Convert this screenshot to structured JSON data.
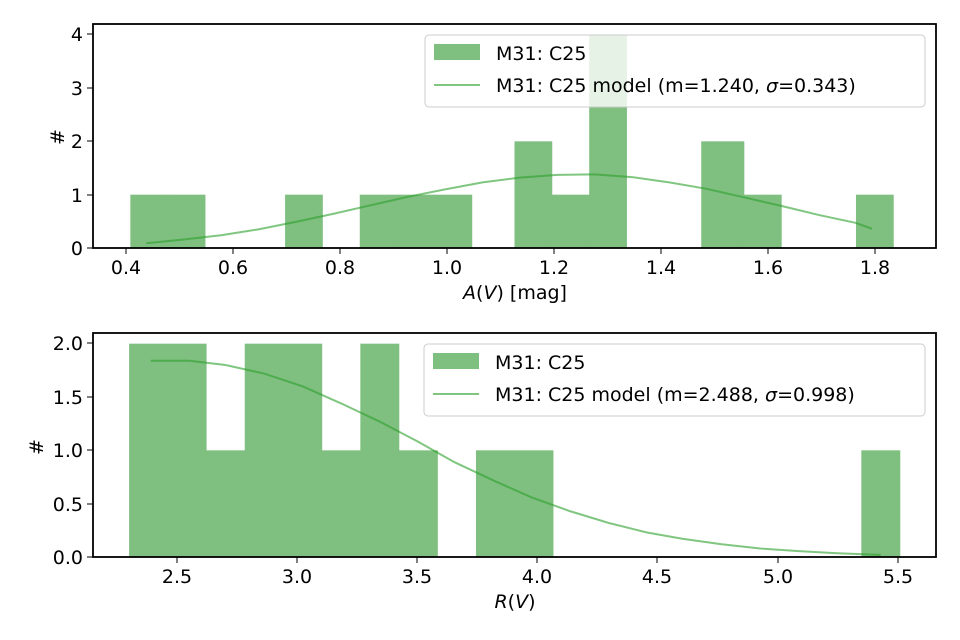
{
  "colors": {
    "bar": "#7fbf7f",
    "line": "#2ca02c"
  },
  "chart_data": [
    {
      "type": "bar",
      "xlabel": "A(V) [mag]",
      "xlabel_parts": {
        "sym": "A",
        "open": "(",
        "var": "V",
        "close": ") [mag]"
      },
      "ylabel": "#",
      "xlim": [
        0.34,
        1.92
      ],
      "ylim": [
        0,
        4.2
      ],
      "xticks": [
        "0.4",
        "0.6",
        "0.8",
        "1.0",
        "1.2",
        "1.4",
        "1.6",
        "1.8"
      ],
      "yticks": [
        "0",
        "1",
        "2",
        "3",
        "4"
      ],
      "bins": {
        "edges": [
          0.41,
          0.48,
          0.55,
          0.62,
          0.7,
          0.77,
          0.84,
          0.91,
          0.98,
          1.05,
          1.13,
          1.2,
          1.27,
          1.34,
          1.41,
          1.48,
          1.56,
          1.63,
          1.7,
          1.77,
          1.84
        ],
        "counts": [
          1,
          1,
          0,
          0,
          1,
          0,
          1,
          1,
          1,
          0,
          2,
          1,
          4,
          0,
          0,
          2,
          1,
          0,
          0,
          1
        ]
      },
      "model_curve": {
        "x": [
          0.44,
          0.51,
          0.58,
          0.65,
          0.72,
          0.79,
          0.86,
          0.93,
          1.0,
          1.07,
          1.14,
          1.21,
          1.28,
          1.35,
          1.42,
          1.49,
          1.56,
          1.63,
          1.7,
          1.77,
          1.8
        ],
        "y": [
          0.09,
          0.16,
          0.24,
          0.35,
          0.49,
          0.64,
          0.8,
          0.96,
          1.1,
          1.23,
          1.32,
          1.37,
          1.38,
          1.33,
          1.23,
          1.11,
          0.95,
          0.79,
          0.62,
          0.47,
          0.36
        ]
      },
      "legend": {
        "position": "upper right",
        "entries": [
          "M31: C25",
          "M31: C25 model (m=1.240, σ=0.343)"
        ],
        "model_parts": {
          "pre": "M31: C25 model (m=1.240, ",
          "sym": "σ",
          "post": "=0.343)"
        }
      }
    },
    {
      "type": "bar",
      "xlabel": "R(V)",
      "xlabel_parts": {
        "sym": "R",
        "open": "(",
        "var": "V",
        "close": ")"
      },
      "ylabel": "#",
      "xlim": [
        2.15,
        5.65
      ],
      "ylim": [
        0,
        2.1
      ],
      "xticks": [
        "2.5",
        "3.0",
        "3.5",
        "4.0",
        "4.5",
        "5.0",
        "5.5"
      ],
      "yticks": [
        "0.0",
        "0.5",
        "1.0",
        "1.5",
        "2.0"
      ],
      "bins": {
        "edges": [
          2.3,
          2.46,
          2.62,
          2.78,
          2.94,
          3.1,
          3.26,
          3.42,
          3.58,
          3.74,
          3.9,
          4.06,
          4.22,
          4.38,
          4.54,
          4.7,
          4.86,
          5.02,
          5.18,
          5.34,
          5.5
        ],
        "counts": [
          2,
          2,
          1,
          2,
          2,
          1,
          2,
          1,
          0,
          1,
          1,
          0,
          0,
          0,
          0,
          0,
          0,
          0,
          0,
          1
        ]
      },
      "model_curve": {
        "x": [
          2.39,
          2.55,
          2.7,
          2.86,
          3.02,
          3.18,
          3.34,
          3.5,
          3.65,
          3.81,
          3.97,
          4.13,
          4.29,
          4.45,
          4.6,
          4.76,
          4.92,
          5.08,
          5.24,
          5.42
        ],
        "y": [
          1.84,
          1.84,
          1.8,
          1.72,
          1.6,
          1.44,
          1.27,
          1.08,
          0.89,
          0.72,
          0.56,
          0.43,
          0.32,
          0.23,
          0.17,
          0.12,
          0.08,
          0.055,
          0.035,
          0.02
        ]
      },
      "legend": {
        "position": "upper right",
        "entries": [
          "M31: C25",
          "M31: C25 model (m=2.488, σ=0.998)"
        ],
        "model_parts": {
          "pre": "M31: C25 model (m=2.488, ",
          "sym": "σ",
          "post": "=0.998)"
        }
      }
    }
  ]
}
